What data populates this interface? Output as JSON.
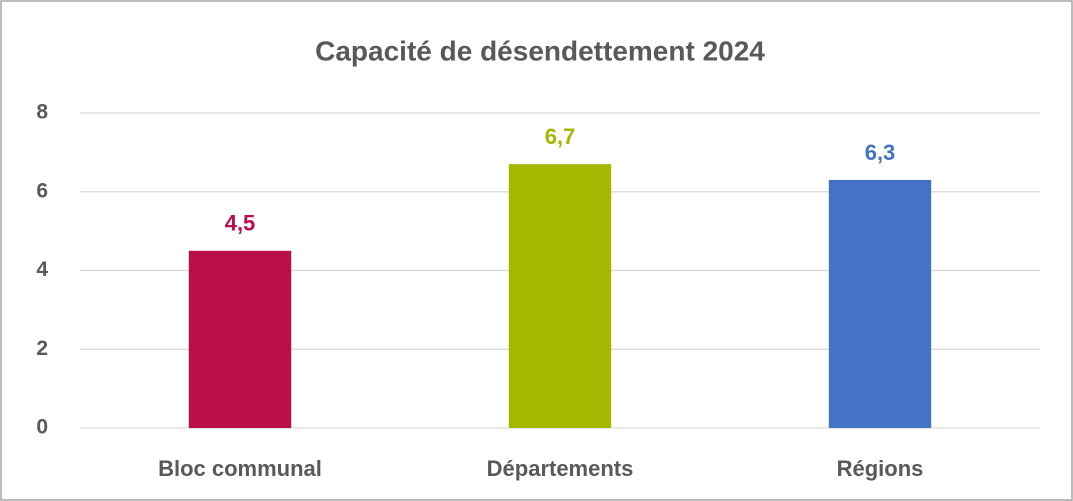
{
  "chart_data": {
    "type": "bar",
    "title": "Capacité de désendettement 2024",
    "categories": [
      "Bloc communal",
      "Départements",
      "Régions"
    ],
    "values": [
      4.5,
      6.7,
      6.3
    ],
    "value_labels": [
      "4,5",
      "6,7",
      "6,3"
    ],
    "colors": [
      "#b90e4a",
      "#a5b700",
      "#4472c4"
    ],
    "ylim": [
      0,
      8
    ],
    "yticks": [
      0,
      2,
      4,
      6,
      8
    ],
    "grid": true
  }
}
